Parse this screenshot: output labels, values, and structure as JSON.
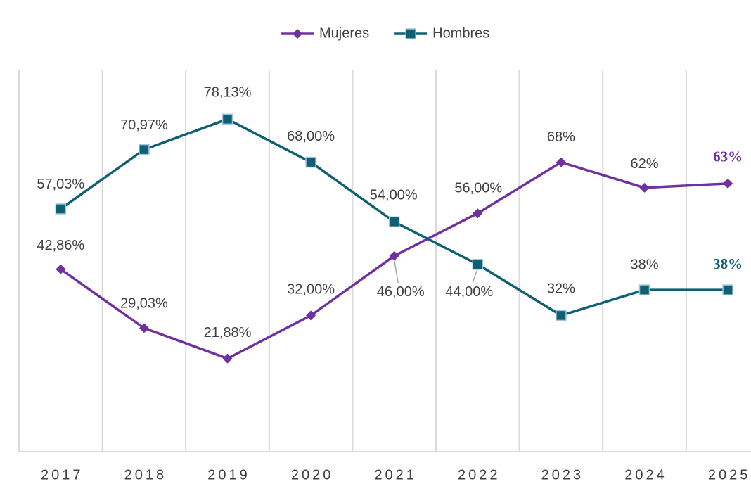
{
  "chart_data": {
    "type": "line",
    "categories": [
      "2017",
      "2018",
      "2019",
      "2020",
      "2021",
      "2022",
      "2023",
      "2024",
      "2025"
    ],
    "series": [
      {
        "name": "Mujeres",
        "color": "#7030a0",
        "marker": "diamond",
        "values": [
          42.86,
          29.03,
          21.88,
          32.0,
          46.0,
          56.0,
          68,
          62,
          63
        ],
        "value_labels": [
          "42,86%",
          "29,03%",
          "21,88%",
          "32,00%",
          "46,00%",
          "56,00%",
          "68%",
          "62%",
          "63%"
        ]
      },
      {
        "name": "Hombres",
        "color": "#0e6072",
        "marker": "square",
        "values": [
          57.03,
          70.97,
          78.13,
          68.0,
          54.0,
          44.0,
          32,
          38,
          38
        ],
        "value_labels": [
          "57,03%",
          "70,97%",
          "78,13%",
          "68,00%",
          "54,00%",
          "44,00%",
          "32%",
          "38%",
          "38%"
        ]
      }
    ],
    "ylim": [
      0,
      100
    ],
    "grid": true,
    "legend": "top"
  }
}
